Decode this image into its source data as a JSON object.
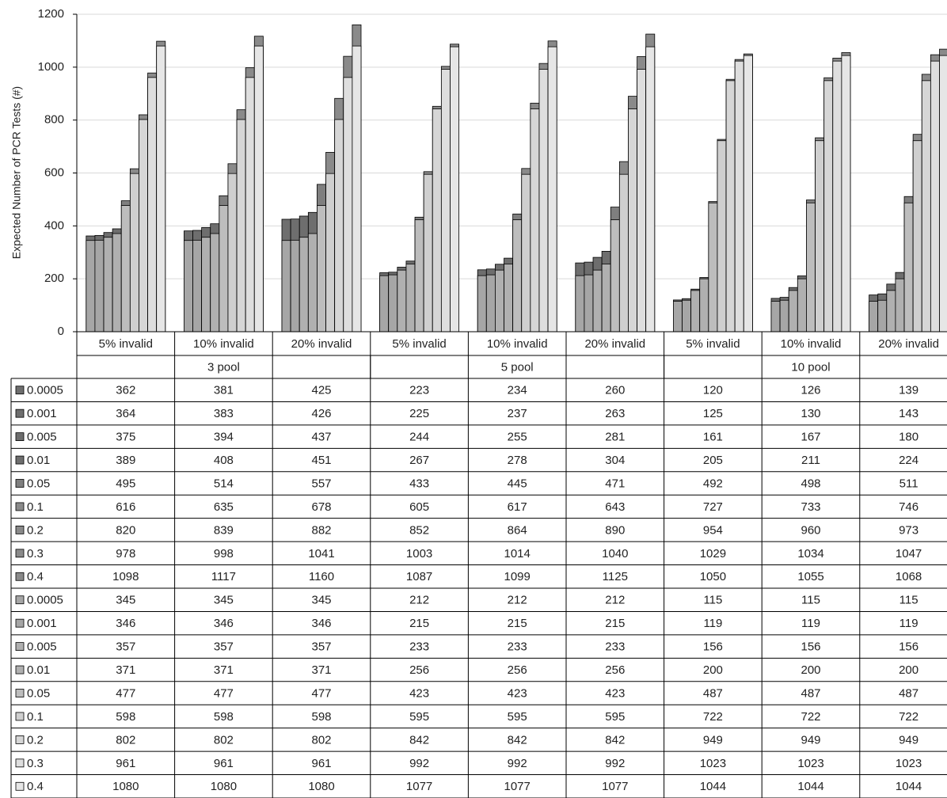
{
  "chart_data": {
    "type": "bar",
    "y_label": "Expected Number of PCR Tests (#)",
    "categories": [
      "5% invalid",
      "10% invalid",
      "20% invalid",
      "5% invalid",
      "10% invalid",
      "20% invalid",
      "5% invalid",
      "10% invalid",
      "20% invalid"
    ],
    "groups": [
      "3 pool",
      "5 pool",
      "10 pool"
    ],
    "ylim": [
      0,
      1200
    ],
    "yticks": [
      0,
      200,
      400,
      600,
      800,
      1000,
      1200
    ],
    "grid": true,
    "series": [
      {
        "name": "0.0005",
        "color": "#6e6e6e",
        "values": [
          362,
          381,
          425,
          223,
          234,
          260,
          120,
          126,
          139
        ]
      },
      {
        "name": "0.001",
        "color": "#6e6e6e",
        "values": [
          364,
          383,
          426,
          225,
          237,
          263,
          125,
          130,
          143
        ]
      },
      {
        "name": "0.005",
        "color": "#6e6e6e",
        "values": [
          375,
          394,
          437,
          244,
          255,
          281,
          161,
          167,
          180
        ]
      },
      {
        "name": "0.01",
        "color": "#6e6e6e",
        "values": [
          389,
          408,
          451,
          267,
          278,
          304,
          205,
          211,
          224
        ]
      },
      {
        "name": "0.05",
        "color": "#7f7f7f",
        "values": [
          495,
          514,
          557,
          433,
          445,
          471,
          492,
          498,
          511
        ]
      },
      {
        "name": "0.1",
        "color": "#8a8a8a",
        "values": [
          616,
          635,
          678,
          605,
          617,
          643,
          727,
          733,
          746
        ]
      },
      {
        "name": "0.2",
        "color": "#8a8a8a",
        "values": [
          820,
          839,
          882,
          852,
          864,
          890,
          954,
          960,
          973
        ]
      },
      {
        "name": "0.3",
        "color": "#8a8a8a",
        "values": [
          978,
          998,
          1041,
          1003,
          1014,
          1040,
          1029,
          1034,
          1047
        ]
      },
      {
        "name": "0.4",
        "color": "#8a8a8a",
        "values": [
          1098,
          1117,
          1160,
          1087,
          1099,
          1125,
          1050,
          1055,
          1068
        ]
      },
      {
        "name": "0.0005",
        "color": "#a6a6a6",
        "values": [
          345,
          345,
          345,
          212,
          212,
          212,
          115,
          115,
          115
        ]
      },
      {
        "name": "0.001",
        "color": "#a6a6a6",
        "values": [
          346,
          346,
          346,
          215,
          215,
          215,
          119,
          119,
          119
        ]
      },
      {
        "name": "0.005",
        "color": "#b0b0b0",
        "values": [
          357,
          357,
          357,
          233,
          233,
          233,
          156,
          156,
          156
        ]
      },
      {
        "name": "0.01",
        "color": "#b0b0b0",
        "values": [
          371,
          371,
          371,
          256,
          256,
          256,
          200,
          200,
          200
        ]
      },
      {
        "name": "0.05",
        "color": "#bdbdbd",
        "values": [
          477,
          477,
          477,
          423,
          423,
          423,
          487,
          487,
          487
        ]
      },
      {
        "name": "0.1",
        "color": "#cfcfcf",
        "values": [
          598,
          598,
          598,
          595,
          595,
          595,
          722,
          722,
          722
        ]
      },
      {
        "name": "0.2",
        "color": "#d6d6d6",
        "values": [
          802,
          802,
          802,
          842,
          842,
          842,
          949,
          949,
          949
        ]
      },
      {
        "name": "0.3",
        "color": "#dedede",
        "values": [
          961,
          961,
          961,
          992,
          992,
          992,
          1023,
          1023,
          1023
        ]
      },
      {
        "name": "0.4",
        "color": "#e6e6e6",
        "values": [
          1080,
          1080,
          1080,
          1077,
          1077,
          1077,
          1044,
          1044,
          1044
        ]
      }
    ]
  }
}
